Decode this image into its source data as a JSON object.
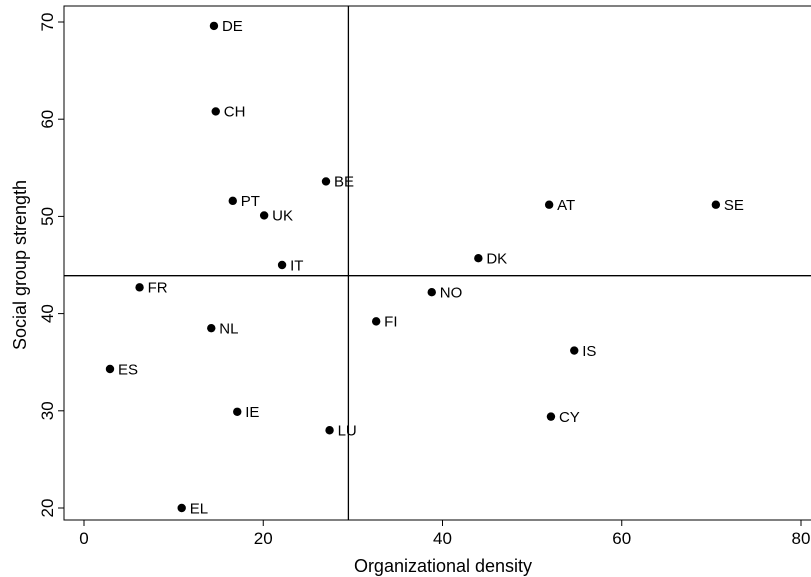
{
  "chart_data": {
    "type": "scatter",
    "title": "",
    "xlabel": "Organizational density",
    "ylabel": "Social group strength",
    "xlim": [
      -1,
      81
    ],
    "ylim": [
      19,
      71
    ],
    "xticks": [
      0,
      20,
      40,
      60,
      80
    ],
    "yticks": [
      20,
      30,
      40,
      50,
      60,
      70
    ],
    "grid": false,
    "reference_lines": {
      "x": 29.5,
      "y": 43.9
    },
    "marker_color": "#000000",
    "points": [
      {
        "label": "DE",
        "x": 14.5,
        "y": 69.6
      },
      {
        "label": "CH",
        "x": 14.7,
        "y": 60.8
      },
      {
        "label": "BE",
        "x": 27.0,
        "y": 53.6
      },
      {
        "label": "PT",
        "x": 16.6,
        "y": 51.6
      },
      {
        "label": "UK",
        "x": 20.1,
        "y": 50.1
      },
      {
        "label": "AT",
        "x": 51.9,
        "y": 51.2
      },
      {
        "label": "SE",
        "x": 70.5,
        "y": 51.2
      },
      {
        "label": "IT",
        "x": 22.1,
        "y": 45.0
      },
      {
        "label": "DK",
        "x": 44.0,
        "y": 45.7
      },
      {
        "label": "FR",
        "x": 6.2,
        "y": 42.7
      },
      {
        "label": "NO",
        "x": 38.8,
        "y": 42.2
      },
      {
        "label": "FI",
        "x": 32.6,
        "y": 39.2
      },
      {
        "label": "NL",
        "x": 14.2,
        "y": 38.5
      },
      {
        "label": "IS",
        "x": 54.7,
        "y": 36.2
      },
      {
        "label": "ES",
        "x": 2.9,
        "y": 34.3
      },
      {
        "label": "IE",
        "x": 17.1,
        "y": 29.9
      },
      {
        "label": "CY",
        "x": 52.1,
        "y": 29.4
      },
      {
        "label": "LU",
        "x": 27.4,
        "y": 28.0
      },
      {
        "label": "EL",
        "x": 10.9,
        "y": 20.0
      }
    ]
  }
}
